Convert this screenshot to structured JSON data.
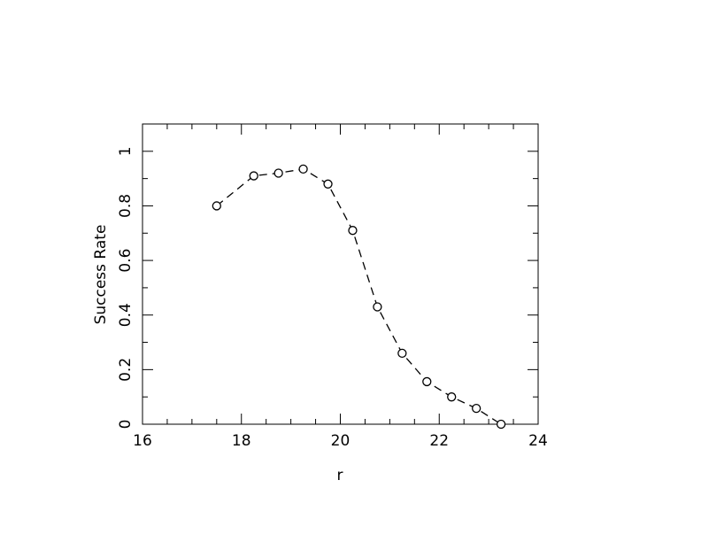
{
  "chart_data": {
    "type": "line",
    "x_label": "r",
    "y_label": "Success Rate",
    "x": [
      17.5,
      18.25,
      18.75,
      19.25,
      19.75,
      20.25,
      20.75,
      21.25,
      21.75,
      22.25,
      22.75,
      23.25
    ],
    "series": [
      {
        "color": "#000000",
        "values": [
          0.8,
          0.91,
          0.92,
          0.935,
          0.88,
          0.71,
          0.43,
          0.26,
          0.156,
          0.1,
          0.058,
          0
        ]
      }
    ],
    "xlim": [
      16,
      24
    ],
    "xticks": [
      16,
      18,
      20,
      22,
      24
    ],
    "xminorticks": [
      16.5,
      17,
      17.5,
      18.5,
      19,
      19.5,
      20.5,
      21,
      21.5,
      22.5,
      23,
      23.5
    ],
    "ylim": [
      0,
      1.1
    ],
    "yticks": [
      0,
      0.2,
      0.4,
      0.6,
      0.8,
      1
    ],
    "yminorticks": [
      0.1,
      0.3,
      0.5,
      0.7,
      0.9
    ],
    "dashed": true,
    "markers": "open-circle"
  }
}
